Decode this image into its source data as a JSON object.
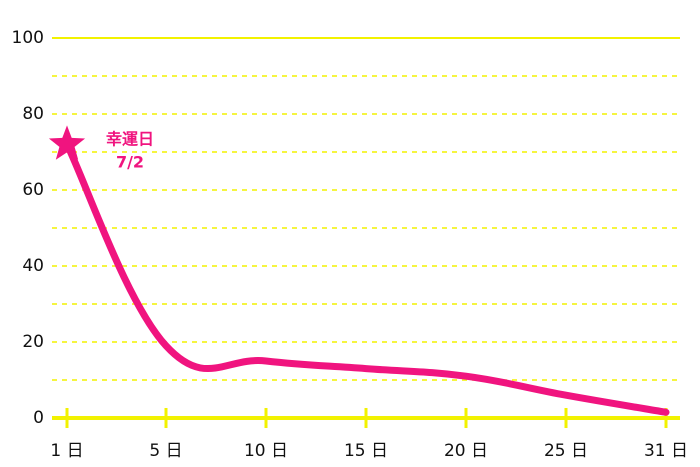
{
  "chart_data": {
    "type": "line",
    "categories": [
      "1 日",
      "5 日",
      "10 日",
      "15 日",
      "20 日",
      "25 日",
      "31 日"
    ],
    "values": [
      72,
      19,
      15,
      13,
      11,
      6,
      1.5
    ],
    "color": "#f0147f",
    "axis_color": "#f2f200",
    "ylim": [
      0,
      100
    ],
    "yticks": [
      0,
      20,
      40,
      60,
      80,
      100
    ],
    "grid_yticks": [
      10,
      20,
      30,
      40,
      50,
      60,
      70,
      80,
      90
    ],
    "grid": true,
    "annotation_title": "幸運日",
    "annotation_date": "7/2"
  }
}
